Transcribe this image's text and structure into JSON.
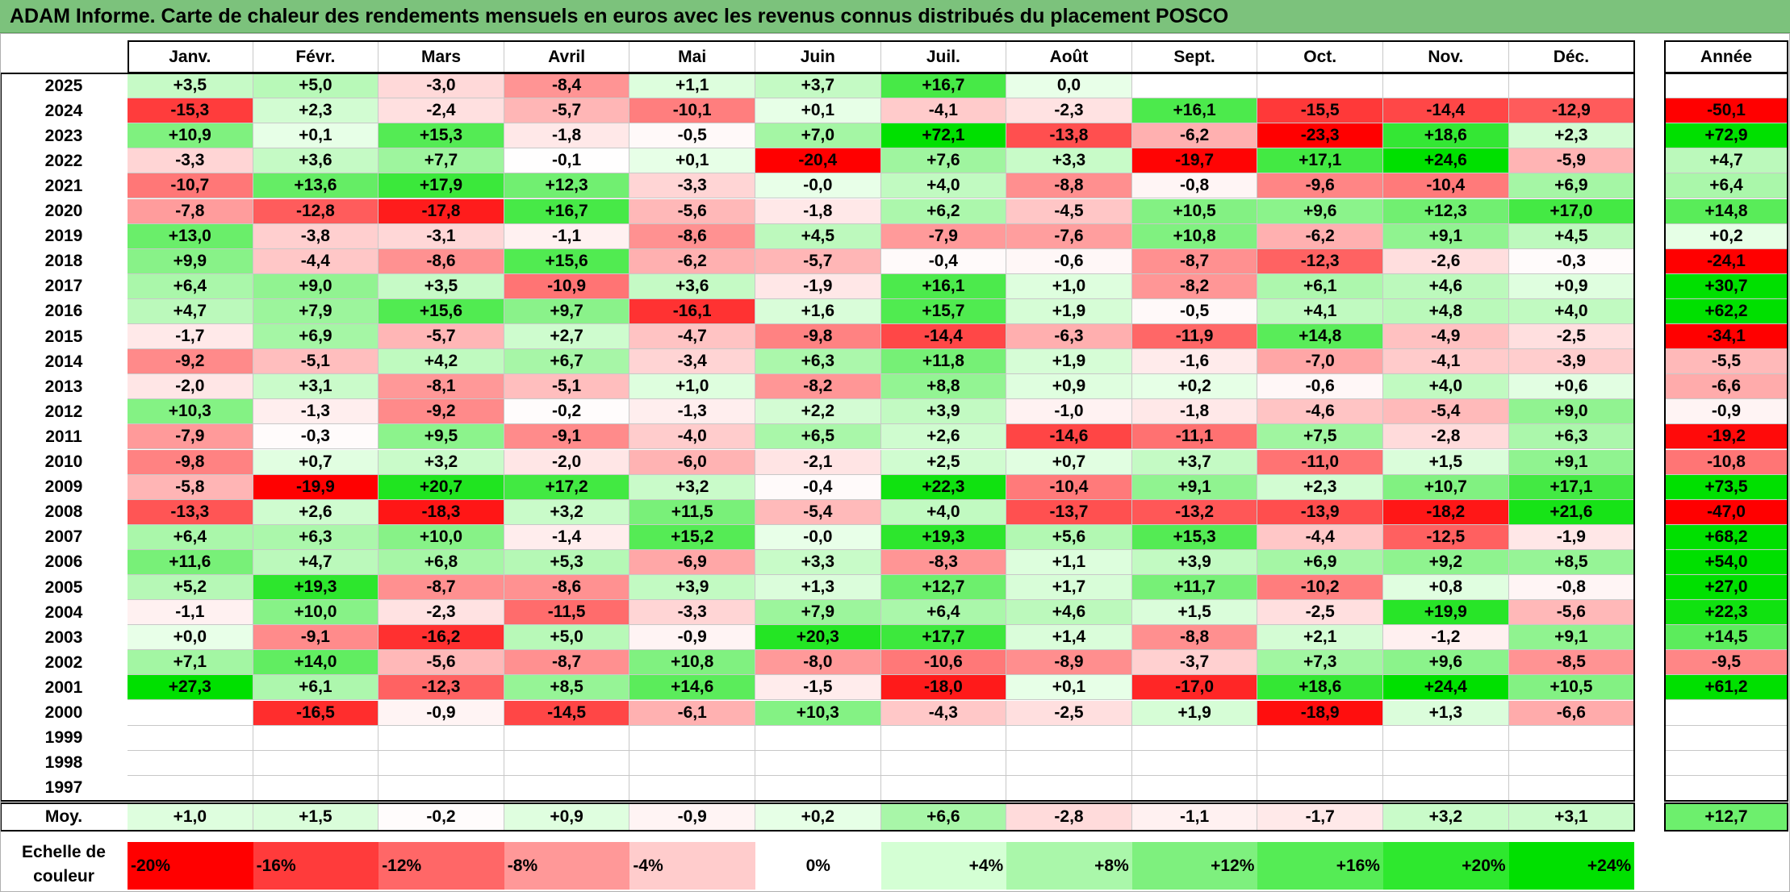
{
  "title": "ADAM Informe. Carte de chaleur des rendements mensuels en euros avec les revenus connus distribués du placement POSCO",
  "chart_data": {
    "type": "heatmap",
    "title": "ADAM Informe. Carte de chaleur des rendements mensuels en euros avec les revenus connus distribués du placement POSCO",
    "months": [
      "Janv.",
      "Févr.",
      "Mars",
      "Avril",
      "Mai",
      "Juin",
      "Juil.",
      "Août",
      "Sept.",
      "Oct.",
      "Nov.",
      "Déc."
    ],
    "year_col_label": "Année",
    "rows": [
      {
        "year": "2025",
        "values": [
          "+3,5",
          "+5,0",
          "-3,0",
          "-8,4",
          "+1,1",
          "+3,7",
          "+16,7",
          "0,0",
          "",
          "",
          "",
          ""
        ],
        "annual": ""
      },
      {
        "year": "2024",
        "values": [
          "-15,3",
          "+2,3",
          "-2,4",
          "-5,7",
          "-10,1",
          "+0,1",
          "-4,1",
          "-2,3",
          "+16,1",
          "-15,5",
          "-14,4",
          "-12,9"
        ],
        "annual": "-50,1"
      },
      {
        "year": "2023",
        "values": [
          "+10,9",
          "+0,1",
          "+15,3",
          "-1,8",
          "-0,5",
          "+7,0",
          "+72,1",
          "-13,8",
          "-6,2",
          "-23,3",
          "+18,6",
          "+2,3"
        ],
        "annual": "+72,9"
      },
      {
        "year": "2022",
        "values": [
          "-3,3",
          "+3,6",
          "+7,7",
          "-0,1",
          "+0,1",
          "-20,4",
          "+7,6",
          "+3,3",
          "-19,7",
          "+17,1",
          "+24,6",
          "-5,9"
        ],
        "annual": "+4,7"
      },
      {
        "year": "2021",
        "values": [
          "-10,7",
          "+13,6",
          "+17,9",
          "+12,3",
          "-3,3",
          "-0,0",
          "+4,0",
          "-8,8",
          "-0,8",
          "-9,6",
          "-10,4",
          "+6,9"
        ],
        "annual": "+6,4"
      },
      {
        "year": "2020",
        "values": [
          "-7,8",
          "-12,8",
          "-17,8",
          "+16,7",
          "-5,6",
          "-1,8",
          "+6,2",
          "-4,5",
          "+10,5",
          "+9,6",
          "+12,3",
          "+17,0"
        ],
        "annual": "+14,8"
      },
      {
        "year": "2019",
        "values": [
          "+13,0",
          "-3,8",
          "-3,1",
          "-1,1",
          "-8,6",
          "+4,5",
          "-7,9",
          "-7,6",
          "+10,8",
          "-6,2",
          "+9,1",
          "+4,5"
        ],
        "annual": "+0,2"
      },
      {
        "year": "2018",
        "values": [
          "+9,9",
          "-4,4",
          "-8,6",
          "+15,6",
          "-6,2",
          "-5,7",
          "-0,4",
          "-0,6",
          "-8,7",
          "-12,3",
          "-2,6",
          "-0,3"
        ],
        "annual": "-24,1"
      },
      {
        "year": "2017",
        "values": [
          "+6,4",
          "+9,0",
          "+3,5",
          "-10,9",
          "+3,6",
          "-1,9",
          "+16,1",
          "+1,0",
          "-8,2",
          "+6,1",
          "+4,6",
          "+0,9"
        ],
        "annual": "+30,7"
      },
      {
        "year": "2016",
        "values": [
          "+4,7",
          "+7,9",
          "+15,6",
          "+9,7",
          "-16,1",
          "+1,6",
          "+15,7",
          "+1,9",
          "-0,5",
          "+4,1",
          "+4,8",
          "+4,0"
        ],
        "annual": "+62,2"
      },
      {
        "year": "2015",
        "values": [
          "-1,7",
          "+6,9",
          "-5,7",
          "+2,7",
          "-4,7",
          "-9,8",
          "-14,4",
          "-6,3",
          "-11,9",
          "+14,8",
          "-4,9",
          "-2,5"
        ],
        "annual": "-34,1"
      },
      {
        "year": "2014",
        "values": [
          "-9,2",
          "-5,1",
          "+4,2",
          "+6,7",
          "-3,4",
          "+6,3",
          "+11,8",
          "+1,9",
          "-1,6",
          "-7,0",
          "-4,1",
          "-3,9"
        ],
        "annual": "-5,5"
      },
      {
        "year": "2013",
        "values": [
          "-2,0",
          "+3,1",
          "-8,1",
          "-5,1",
          "+1,0",
          "-8,2",
          "+8,8",
          "+0,9",
          "+0,2",
          "-0,6",
          "+4,0",
          "+0,6"
        ],
        "annual": "-6,6"
      },
      {
        "year": "2012",
        "values": [
          "+10,3",
          "-1,3",
          "-9,2",
          "-0,2",
          "-1,3",
          "+2,2",
          "+3,9",
          "-1,0",
          "-1,8",
          "-4,6",
          "-5,4",
          "+9,0"
        ],
        "annual": "-0,9"
      },
      {
        "year": "2011",
        "values": [
          "-7,9",
          "-0,3",
          "+9,5",
          "-9,1",
          "-4,0",
          "+6,5",
          "+2,6",
          "-14,6",
          "-11,1",
          "+7,5",
          "-2,8",
          "+6,3"
        ],
        "annual": "-19,2"
      },
      {
        "year": "2010",
        "values": [
          "-9,8",
          "+0,7",
          "+3,2",
          "-2,0",
          "-6,0",
          "-2,1",
          "+2,5",
          "+0,7",
          "+3,7",
          "-11,0",
          "+1,5",
          "+9,1"
        ],
        "annual": "-10,8"
      },
      {
        "year": "2009",
        "values": [
          "-5,8",
          "-19,9",
          "+20,7",
          "+17,2",
          "+3,2",
          "-0,4",
          "+22,3",
          "-10,4",
          "+9,1",
          "+2,3",
          "+10,7",
          "+17,1"
        ],
        "annual": "+73,5"
      },
      {
        "year": "2008",
        "values": [
          "-13,3",
          "+2,6",
          "-18,3",
          "+3,2",
          "+11,5",
          "-5,4",
          "+4,0",
          "-13,7",
          "-13,2",
          "-13,9",
          "-18,2",
          "+21,6"
        ],
        "annual": "-47,0"
      },
      {
        "year": "2007",
        "values": [
          "+6,4",
          "+6,3",
          "+10,0",
          "-1,4",
          "+15,2",
          "-0,0",
          "+19,3",
          "+5,6",
          "+15,3",
          "-4,4",
          "-12,5",
          "-1,9"
        ],
        "annual": "+68,2"
      },
      {
        "year": "2006",
        "values": [
          "+11,6",
          "+4,7",
          "+6,8",
          "+5,3",
          "-6,9",
          "+3,3",
          "-8,3",
          "+1,1",
          "+3,9",
          "+6,9",
          "+9,2",
          "+8,5"
        ],
        "annual": "+54,0"
      },
      {
        "year": "2005",
        "values": [
          "+5,2",
          "+19,3",
          "-8,7",
          "-8,6",
          "+3,9",
          "+1,3",
          "+12,7",
          "+1,7",
          "+11,7",
          "-10,2",
          "+0,8",
          "-0,8"
        ],
        "annual": "+27,0"
      },
      {
        "year": "2004",
        "values": [
          "-1,1",
          "+10,0",
          "-2,3",
          "-11,5",
          "-3,3",
          "+7,9",
          "+6,4",
          "+4,6",
          "+1,5",
          "-2,5",
          "+19,9",
          "-5,6"
        ],
        "annual": "+22,3"
      },
      {
        "year": "2003",
        "values": [
          "+0,0",
          "-9,1",
          "-16,2",
          "+5,0",
          "-0,9",
          "+20,3",
          "+17,7",
          "+1,4",
          "-8,8",
          "+2,1",
          "-1,2",
          "+9,1"
        ],
        "annual": "+14,5"
      },
      {
        "year": "2002",
        "values": [
          "+7,1",
          "+14,0",
          "-5,6",
          "-8,7",
          "+10,8",
          "-8,0",
          "-10,6",
          "-8,9",
          "-3,7",
          "+7,3",
          "+9,6",
          "-8,5"
        ],
        "annual": "-9,5"
      },
      {
        "year": "2001",
        "values": [
          "+27,3",
          "+6,1",
          "-12,3",
          "+8,5",
          "+14,6",
          "-1,5",
          "-18,0",
          "+0,1",
          "-17,0",
          "+18,6",
          "+24,4",
          "+10,5"
        ],
        "annual": "+61,2"
      },
      {
        "year": "2000",
        "values": [
          "",
          "-16,5",
          "-0,9",
          "-14,5",
          "-6,1",
          "+10,3",
          "-4,3",
          "-2,5",
          "+1,9",
          "-18,9",
          "+1,3",
          "-6,6"
        ],
        "annual": ""
      },
      {
        "year": "1999",
        "values": [
          "",
          "",
          "",
          "",
          "",
          "",
          "",
          "",
          "",
          "",
          "",
          ""
        ],
        "annual": ""
      },
      {
        "year": "1998",
        "values": [
          "",
          "",
          "",
          "",
          "",
          "",
          "",
          "",
          "",
          "",
          "",
          ""
        ],
        "annual": ""
      },
      {
        "year": "1997",
        "values": [
          "",
          "",
          "",
          "",
          "",
          "",
          "",
          "",
          "",
          "",
          "",
          ""
        ],
        "annual": ""
      }
    ],
    "average": {
      "label": "Moy.",
      "values": [
        "+1,0",
        "+1,5",
        "-0,2",
        "+0,9",
        "-0,9",
        "+0,2",
        "+6,6",
        "-2,8",
        "-1,1",
        "-1,7",
        "+3,2",
        "+3,1"
      ],
      "annual": "+12,7"
    },
    "color_scale": {
      "label": "Echelle de couleur",
      "steps": [
        {
          "label": "-20%",
          "value": -20,
          "color": "#ff0000"
        },
        {
          "label": "-16%",
          "value": -16,
          "color": "#ff3b3b"
        },
        {
          "label": "-12%",
          "value": -12,
          "color": "#ff6767"
        },
        {
          "label": "-8%",
          "value": -8,
          "color": "#ff9898"
        },
        {
          "label": "-4%",
          "value": -4,
          "color": "#ffcccc"
        },
        {
          "label": "0%",
          "value": 0,
          "color": "#ffffff"
        },
        {
          "label": "+4%",
          "value": 4,
          "color": "#d4ffd4"
        },
        {
          "label": "+8%",
          "value": 8,
          "color": "#aaf7aa"
        },
        {
          "label": "+12%",
          "value": 12,
          "color": "#7ef07e"
        },
        {
          "label": "+16%",
          "value": 16,
          "color": "#55ec55"
        },
        {
          "label": "+20%",
          "value": 20,
          "color": "#2ee82e"
        },
        {
          "label": "+24%",
          "value": 24,
          "color": "#00e000"
        }
      ]
    }
  }
}
